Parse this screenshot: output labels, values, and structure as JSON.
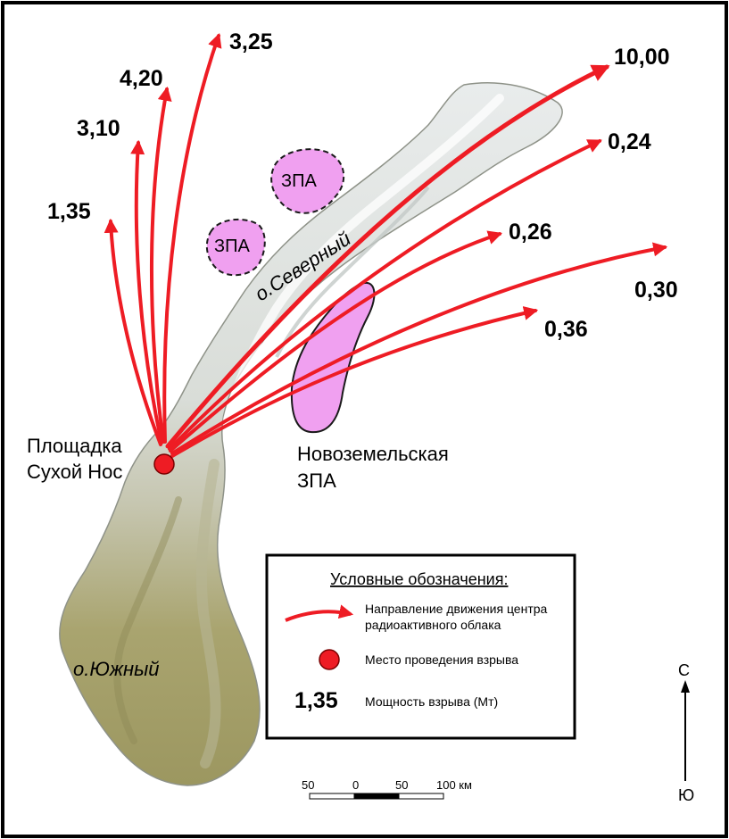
{
  "site": {
    "name_line1": "Площадка",
    "name_line2": "Сухой Нос"
  },
  "islands": {
    "north": "о.Северный",
    "south": "о.Южный"
  },
  "zones": {
    "small_label_1": "ЗПА",
    "small_label_2": "ЗПА",
    "large_label_line1": "Новоземельская",
    "large_label_line2": "ЗПА"
  },
  "explosions": [
    {
      "id": "e1",
      "yield": "1,35"
    },
    {
      "id": "e2",
      "yield": "3,10"
    },
    {
      "id": "e3",
      "yield": "4,20"
    },
    {
      "id": "e4",
      "yield": "3,25"
    },
    {
      "id": "e5",
      "yield": "10,00"
    },
    {
      "id": "e6",
      "yield": "0,24"
    },
    {
      "id": "e7",
      "yield": "0,26"
    },
    {
      "id": "e8",
      "yield": "0,30"
    },
    {
      "id": "e9",
      "yield": "0,36"
    }
  ],
  "legend": {
    "title": "Условные обозначения:",
    "arrow_line1": "Направление движения центра",
    "arrow_line2": "радиоактивного облака",
    "dot_text": "Место проведения взрыва",
    "sample_value": "1,35",
    "value_text": "Мощность взрыва (Мт)"
  },
  "scale": {
    "ticks": [
      "50",
      "0",
      "50",
      "100 км"
    ]
  },
  "compass": {
    "north": "С",
    "south": "Ю"
  },
  "colors": {
    "arrow": "#ee1c24",
    "zone_fill": "#f0a0f0",
    "site_dot": "#ee1c24",
    "land_light": "#dfe3e2",
    "land_green": "#a8a46e"
  }
}
